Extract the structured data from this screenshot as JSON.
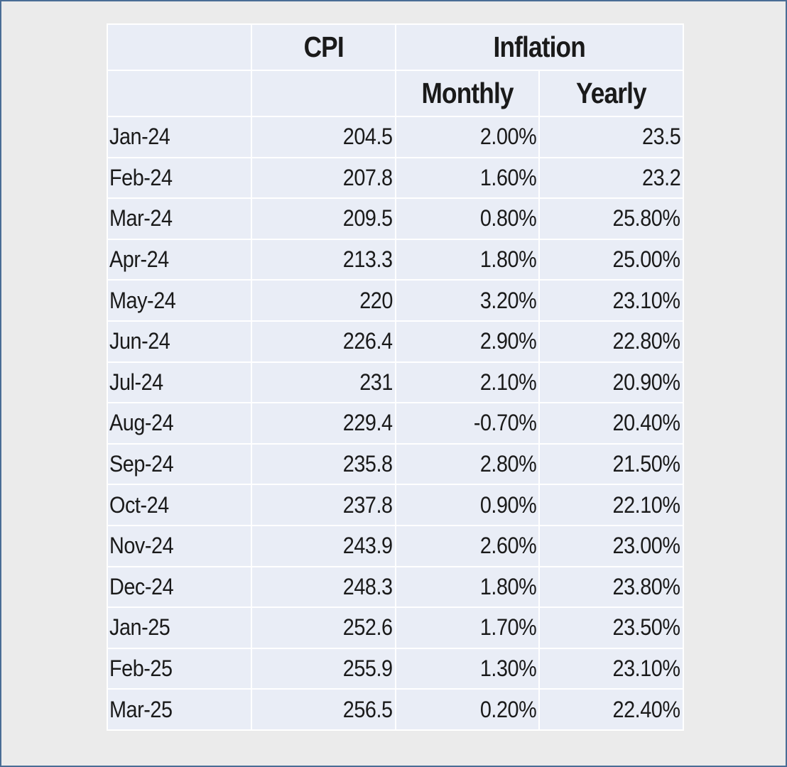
{
  "headers": {
    "cpi": "CPI",
    "inflation": "Inflation",
    "monthly": "Monthly",
    "yearly": "Yearly"
  },
  "rows": [
    {
      "month": "Jan-24",
      "cpi": "204.5",
      "monthly": "2.00%",
      "yearly": "23.5"
    },
    {
      "month": "Feb-24",
      "cpi": "207.8",
      "monthly": "1.60%",
      "yearly": "23.2"
    },
    {
      "month": "Mar-24",
      "cpi": "209.5",
      "monthly": "0.80%",
      "yearly": "25.80%"
    },
    {
      "month": "Apr-24",
      "cpi": "213.3",
      "monthly": "1.80%",
      "yearly": "25.00%"
    },
    {
      "month": "May-24",
      "cpi": "220",
      "monthly": "3.20%",
      "yearly": "23.10%"
    },
    {
      "month": "Jun-24",
      "cpi": "226.4",
      "monthly": "2.90%",
      "yearly": "22.80%"
    },
    {
      "month": "Jul-24",
      "cpi": "231",
      "monthly": "2.10%",
      "yearly": "20.90%"
    },
    {
      "month": "Aug-24",
      "cpi": "229.4",
      "monthly": "-0.70%",
      "yearly": "20.40%"
    },
    {
      "month": "Sep-24",
      "cpi": "235.8",
      "monthly": "2.80%",
      "yearly": "21.50%"
    },
    {
      "month": "Oct-24",
      "cpi": "237.8",
      "monthly": "0.90%",
      "yearly": "22.10%"
    },
    {
      "month": "Nov-24",
      "cpi": "243.9",
      "monthly": "2.60%",
      "yearly": "23.00%"
    },
    {
      "month": "Dec-24",
      "cpi": "248.3",
      "monthly": "1.80%",
      "yearly": "23.80%"
    },
    {
      "month": "Jan-25",
      "cpi": "252.6",
      "monthly": "1.70%",
      "yearly": "23.50%"
    },
    {
      "month": "Feb-25",
      "cpi": "255.9",
      "monthly": "1.30%",
      "yearly": "23.10%"
    },
    {
      "month": "Mar-25",
      "cpi": "256.5",
      "monthly": "0.20%",
      "yearly": "22.40%"
    }
  ]
}
